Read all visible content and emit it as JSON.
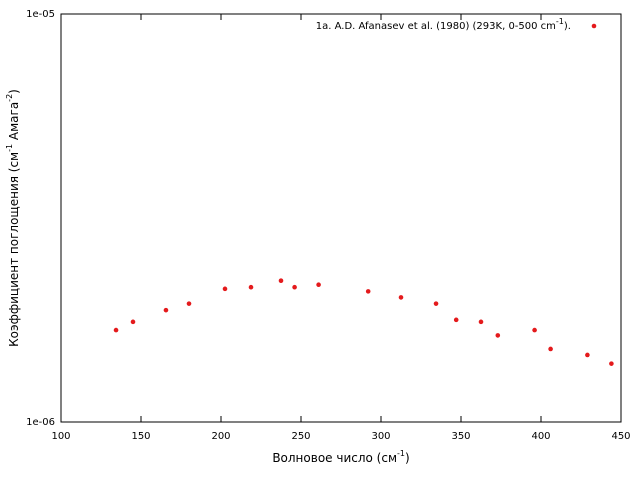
{
  "chart_data": {
    "type": "scatter",
    "xlabel": [
      "Волновое число (см",
      "-1",
      ")"
    ],
    "ylabel": [
      "Коэффициент поглощения (см",
      "-1",
      " Амага",
      "-2",
      ")"
    ],
    "xlim": [
      100,
      450
    ],
    "xticks": [
      100,
      150,
      200,
      250,
      300,
      350,
      400,
      450
    ],
    "ylim": [
      1e-06,
      1e-05
    ],
    "ylog": true,
    "yticks": [
      {
        "value": 1e-06,
        "label": "1e-06"
      },
      {
        "value": 1e-05,
        "label": "1e-05"
      }
    ],
    "grid": false,
    "legend": "top-right",
    "series": [
      {
        "name": [
          "1a. A.D. Afanasev et al. (1980) (293K, 0-500 cm",
          "-1",
          ")."
        ],
        "color": "#e41a1c",
        "x": [
          134.4,
          145,
          165.6,
          180,
          202.5,
          218.75,
          237.5,
          246,
          261,
          292,
          312.5,
          334.4,
          347,
          362.5,
          373,
          396,
          406,
          429,
          444
        ],
        "values": [
          1.68e-06,
          1.76e-06,
          1.88e-06,
          1.95e-06,
          2.12e-06,
          2.14e-06,
          2.22e-06,
          2.14e-06,
          2.17e-06,
          2.09e-06,
          2.02e-06,
          1.95e-06,
          1.78e-06,
          1.76e-06,
          1.63e-06,
          1.68e-06,
          1.51e-06,
          1.46e-06,
          1.39e-06
        ]
      }
    ]
  }
}
